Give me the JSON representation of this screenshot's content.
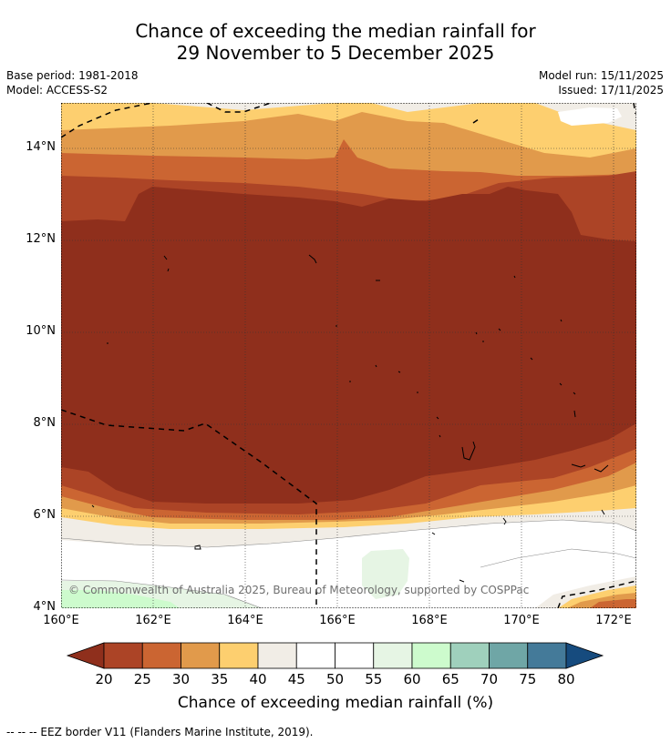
{
  "title_line1": "Chance of exceeding the median rainfall for",
  "title_line2": "29 November to 5 December 2025",
  "base_period": "Base period: 1981-2018",
  "model": "Model: ACCESS-S2",
  "model_run": "Model run: 15/11/2025",
  "issued": "Issued: 17/11/2025",
  "lat_labels": [
    "14°N",
    "12°N",
    "10°N",
    "8°N",
    "6°N",
    "4°N"
  ],
  "lon_labels": [
    "160°E",
    "162°E",
    "164°E",
    "166°E",
    "168°E",
    "170°E",
    "172°E"
  ],
  "copyright": "© Commonwealth of Australia 2025, Bureau of Meteorology, supported by COSPPac",
  "colorbar": {
    "ticks": [
      "20",
      "25",
      "30",
      "35",
      "40",
      "45",
      "50",
      "55",
      "60",
      "65",
      "70",
      "75",
      "80"
    ],
    "colors": [
      "#8f2f1c",
      "#ac4426",
      "#cb6532",
      "#e19a4b",
      "#fdcf6f",
      "#f1ede6",
      "#ffffff",
      "#ffffff",
      "#e6f5e4",
      "#cdfbcd",
      "#9fd0bc",
      "#6fa6a6",
      "#447a99",
      "#164b7e"
    ],
    "title": "Chance of exceeding median rainfall (%)"
  },
  "footnote": "-- -- -- EEZ border V11 (Flanders Marine Institute, 2019)."
}
